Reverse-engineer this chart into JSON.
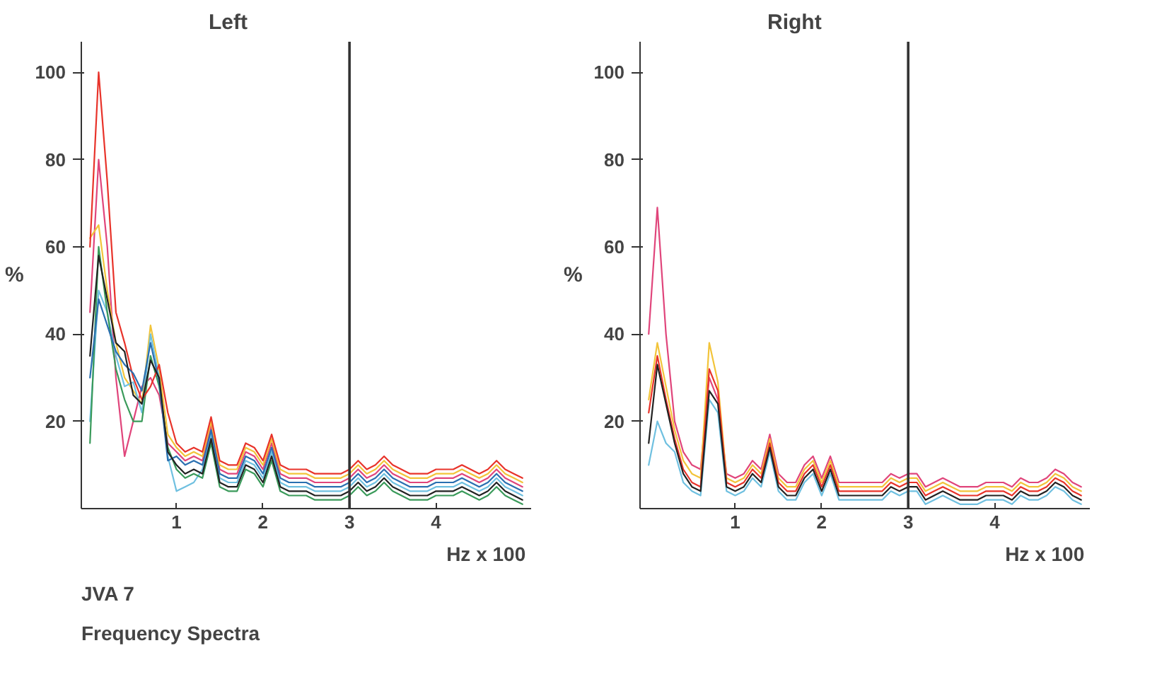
{
  "chart_data": [
    {
      "type": "line",
      "title": "Left",
      "ylabel": "%",
      "xlabel": "Hz  x 100",
      "annotations": [
        "JVA 7",
        "Frequency Spectra"
      ],
      "x": [
        0,
        0.1,
        0.2,
        0.3,
        0.4,
        0.5,
        0.6,
        0.7,
        0.8,
        0.9,
        1.0,
        1.1,
        1.2,
        1.3,
        1.4,
        1.5,
        1.6,
        1.7,
        1.8,
        1.9,
        2.0,
        2.1,
        2.2,
        2.3,
        2.4,
        2.5,
        2.6,
        2.7,
        2.8,
        2.9,
        3.0,
        3.1,
        3.2,
        3.3,
        3.4,
        3.5,
        3.6,
        3.7,
        3.8,
        3.9,
        4.0,
        4.1,
        4.2,
        4.3,
        4.4,
        4.5,
        4.6,
        4.7,
        4.8,
        4.9,
        5.0
      ],
      "xlim": [
        -0.1,
        5.1
      ],
      "ylim": [
        0,
        107
      ],
      "xticks": [
        1,
        2,
        3,
        4
      ],
      "yticks": [
        20,
        40,
        60,
        80,
        100
      ],
      "ref_lines": [
        {
          "axis": "x",
          "value": 3,
          "color": "#333333"
        }
      ],
      "series": [
        {
          "color": "#e0457b",
          "values": [
            45,
            80,
            60,
            30,
            12,
            20,
            28,
            30,
            26,
            15,
            13,
            11,
            12,
            11,
            19,
            9,
            8,
            8,
            13,
            12,
            9,
            15,
            8,
            7,
            7,
            7,
            6,
            6,
            6,
            6,
            7,
            9,
            7,
            8,
            10,
            8,
            7,
            6,
            6,
            6,
            7,
            7,
            7,
            8,
            7,
            6,
            7,
            9,
            7,
            6,
            5
          ]
        },
        {
          "color": "#f2c43a",
          "values": [
            62,
            65,
            50,
            38,
            30,
            27,
            24,
            42,
            32,
            17,
            14,
            12,
            13,
            12,
            20,
            10,
            9,
            9,
            14,
            13,
            10,
            16,
            9,
            8,
            8,
            8,
            7,
            7,
            7,
            7,
            8,
            10,
            8,
            9,
            11,
            9,
            8,
            7,
            7,
            7,
            8,
            8,
            8,
            9,
            8,
            7,
            8,
            10,
            8,
            7,
            6
          ]
        },
        {
          "color": "#6fc0e0",
          "values": [
            20,
            50,
            45,
            35,
            28,
            29,
            22,
            40,
            30,
            12,
            4,
            5,
            6,
            9,
            17,
            7,
            6,
            6,
            11,
            10,
            7,
            13,
            6,
            5,
            5,
            5,
            4,
            4,
            4,
            4,
            5,
            7,
            5,
            6,
            8,
            6,
            5,
            4,
            4,
            4,
            5,
            5,
            5,
            6,
            5,
            4,
            5,
            7,
            5,
            4,
            3
          ]
        },
        {
          "color": "#3a9a5a",
          "values": [
            15,
            60,
            45,
            32,
            25,
            20,
            20,
            35,
            28,
            14,
            9,
            7,
            8,
            7,
            15,
            5,
            4,
            4,
            9,
            8,
            5,
            11,
            4,
            3,
            3,
            3,
            2,
            2,
            2,
            2,
            3,
            5,
            3,
            4,
            6,
            4,
            3,
            2,
            2,
            2,
            3,
            3,
            3,
            4,
            3,
            2,
            3,
            5,
            3,
            2,
            1
          ]
        },
        {
          "color": "#e8332a",
          "values": [
            60,
            100,
            75,
            45,
            38,
            30,
            25,
            28,
            33,
            22,
            15,
            13,
            14,
            13,
            21,
            11,
            10,
            10,
            15,
            14,
            11,
            17,
            10,
            9,
            9,
            9,
            8,
            8,
            8,
            8,
            9,
            11,
            9,
            10,
            12,
            10,
            9,
            8,
            8,
            8,
            9,
            9,
            9,
            10,
            9,
            8,
            9,
            11,
            9,
            8,
            7
          ]
        },
        {
          "color": "#2a6fb0",
          "values": [
            30,
            48,
            42,
            36,
            33,
            31,
            27,
            38,
            29,
            11,
            12,
            10,
            11,
            10,
            18,
            8,
            7,
            7,
            12,
            11,
            8,
            14,
            7,
            6,
            6,
            6,
            5,
            5,
            5,
            5,
            6,
            8,
            6,
            7,
            9,
            7,
            6,
            5,
            5,
            5,
            6,
            6,
            6,
            7,
            6,
            5,
            6,
            8,
            6,
            5,
            4
          ]
        },
        {
          "color": "#222222",
          "values": [
            35,
            58,
            48,
            38,
            36,
            26,
            24,
            34,
            30,
            13,
            10,
            8,
            9,
            8,
            16,
            6,
            5,
            5,
            10,
            9,
            6,
            12,
            5,
            4,
            4,
            4,
            3,
            3,
            3,
            3,
            4,
            6,
            4,
            5,
            7,
            5,
            4,
            3,
            3,
            3,
            4,
            4,
            4,
            5,
            4,
            3,
            4,
            6,
            4,
            3,
            2
          ]
        }
      ]
    },
    {
      "type": "line",
      "title": "Right",
      "ylabel": "%",
      "xlabel": "Hz  x 100",
      "x": [
        0,
        0.1,
        0.2,
        0.3,
        0.4,
        0.5,
        0.6,
        0.7,
        0.8,
        0.9,
        1.0,
        1.1,
        1.2,
        1.3,
        1.4,
        1.5,
        1.6,
        1.7,
        1.8,
        1.9,
        2.0,
        2.1,
        2.2,
        2.3,
        2.4,
        2.5,
        2.6,
        2.7,
        2.8,
        2.9,
        3.0,
        3.1,
        3.2,
        3.3,
        3.4,
        3.5,
        3.6,
        3.7,
        3.8,
        3.9,
        4.0,
        4.1,
        4.2,
        4.3,
        4.4,
        4.5,
        4.6,
        4.7,
        4.8,
        4.9,
        5.0
      ],
      "xlim": [
        -0.1,
        5.1
      ],
      "ylim": [
        0,
        107
      ],
      "xticks": [
        1,
        2,
        3,
        4
      ],
      "yticks": [
        20,
        40,
        60,
        80,
        100
      ],
      "ref_lines": [
        {
          "axis": "x",
          "value": 3,
          "color": "#333333"
        }
      ],
      "series": [
        {
          "color": "#e0457b",
          "values": [
            40,
            69,
            40,
            20,
            13,
            10,
            9,
            30,
            25,
            8,
            7,
            8,
            11,
            9,
            17,
            8,
            6,
            6,
            10,
            12,
            7,
            12,
            6,
            6,
            6,
            6,
            6,
            6,
            8,
            7,
            8,
            8,
            5,
            6,
            7,
            6,
            5,
            5,
            5,
            6,
            6,
            6,
            5,
            7,
            6,
            6,
            7,
            9,
            8,
            6,
            5
          ]
        },
        {
          "color": "#f2c43a",
          "values": [
            25,
            38,
            28,
            18,
            11,
            8,
            7,
            38,
            29,
            7,
            6,
            7,
            10,
            8,
            16,
            7,
            5,
            5,
            9,
            11,
            6,
            11,
            5,
            5,
            5,
            5,
            5,
            5,
            7,
            6,
            7,
            7,
            4,
            5,
            6,
            5,
            4,
            4,
            4,
            5,
            5,
            5,
            4,
            6,
            5,
            5,
            6,
            8,
            7,
            5,
            4
          ]
        },
        {
          "color": "#e8332a",
          "values": [
            22,
            35,
            25,
            16,
            9,
            6,
            5,
            32,
            27,
            6,
            5,
            6,
            9,
            7,
            15,
            6,
            4,
            4,
            8,
            10,
            5,
            10,
            4,
            4,
            4,
            4,
            4,
            4,
            6,
            5,
            6,
            6,
            3,
            4,
            5,
            4,
            3,
            3,
            3,
            4,
            4,
            4,
            3,
            5,
            4,
            4,
            5,
            7,
            6,
            4,
            3
          ]
        },
        {
          "color": "#6fc0e0",
          "values": [
            10,
            20,
            15,
            13,
            6,
            4,
            3,
            25,
            22,
            4,
            3,
            4,
            7,
            5,
            13,
            4,
            2,
            2,
            6,
            8,
            3,
            8,
            2,
            2,
            2,
            2,
            2,
            2,
            4,
            3,
            4,
            4,
            1,
            2,
            3,
            2,
            1,
            1,
            1,
            2,
            2,
            2,
            1,
            3,
            2,
            2,
            3,
            5,
            4,
            2,
            1
          ]
        },
        {
          "color": "#222222",
          "values": [
            15,
            33,
            24,
            15,
            8,
            5,
            4,
            27,
            24,
            5,
            4,
            5,
            8,
            6,
            14,
            5,
            3,
            3,
            7,
            9,
            4,
            9,
            3,
            3,
            3,
            3,
            3,
            3,
            5,
            4,
            5,
            5,
            2,
            3,
            4,
            3,
            2,
            2,
            2,
            3,
            3,
            3,
            2,
            4,
            3,
            3,
            4,
            6,
            5,
            3,
            2
          ]
        }
      ]
    }
  ]
}
